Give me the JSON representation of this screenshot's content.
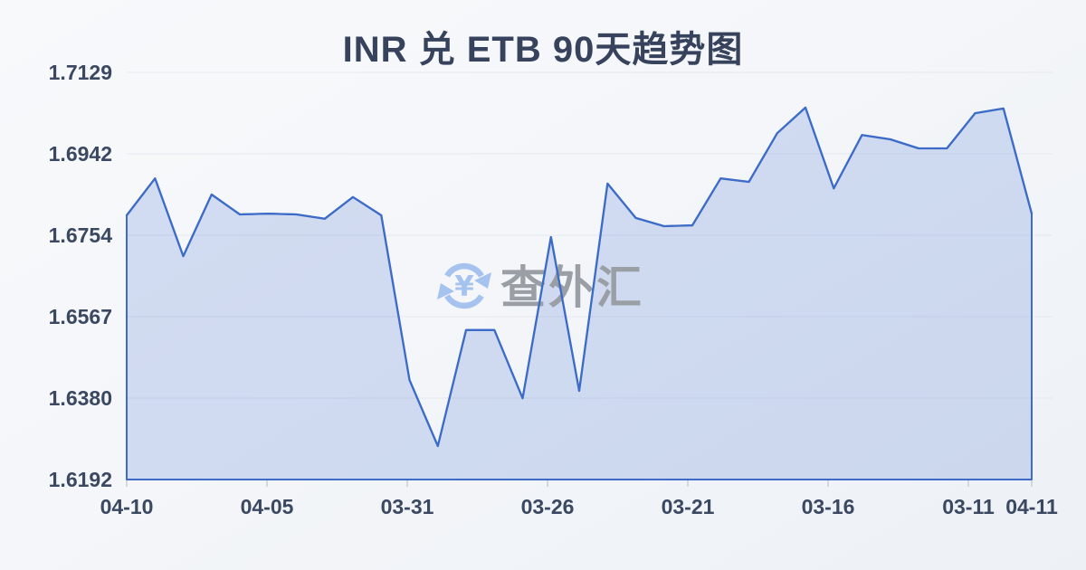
{
  "chart": {
    "title": "INR 兑 ETB 90天趋势图"
  },
  "watermark": {
    "text": "查外汇",
    "icon_symbol": "¥",
    "icon_color": "#a6c3f0",
    "text_color": "#9a9ea5"
  },
  "chart_data": {
    "type": "area",
    "title": "INR 兑 ETB 90天趋势图",
    "x_tick_labels": [
      "04-10",
      "04-05",
      "03-31",
      "03-26",
      "03-21",
      "03-16",
      "03-11",
      "04-11"
    ],
    "y_tick_labels": [
      "1.7129",
      "1.6942",
      "1.6754",
      "1.6567",
      "1.6380",
      "1.6192"
    ],
    "ylim": [
      1.6192,
      1.7129
    ],
    "grid": true,
    "legend": false,
    "series": [
      {
        "name": "INR 兑 ETB",
        "values": [
          1.68,
          1.6885,
          1.6706,
          1.6848,
          1.6802,
          1.6804,
          1.6802,
          1.6792,
          1.6842,
          1.68,
          1.6421,
          1.6269,
          1.6536,
          1.6536,
          1.6379,
          1.675,
          1.6396,
          1.6873,
          1.6794,
          1.6775,
          1.6777,
          1.6885,
          1.6877,
          1.6989,
          1.7048,
          1.6862,
          1.6985,
          1.6975,
          1.6954,
          1.6954,
          1.7035,
          1.7046,
          1.6804
        ]
      }
    ],
    "line_color": "#3d6cc8",
    "fill_color": "rgba(64,110,205,0.20)",
    "grid_color": "#e4e8ee",
    "tick_color": "#c9ced8",
    "axis_label_color": "#3b4862"
  }
}
